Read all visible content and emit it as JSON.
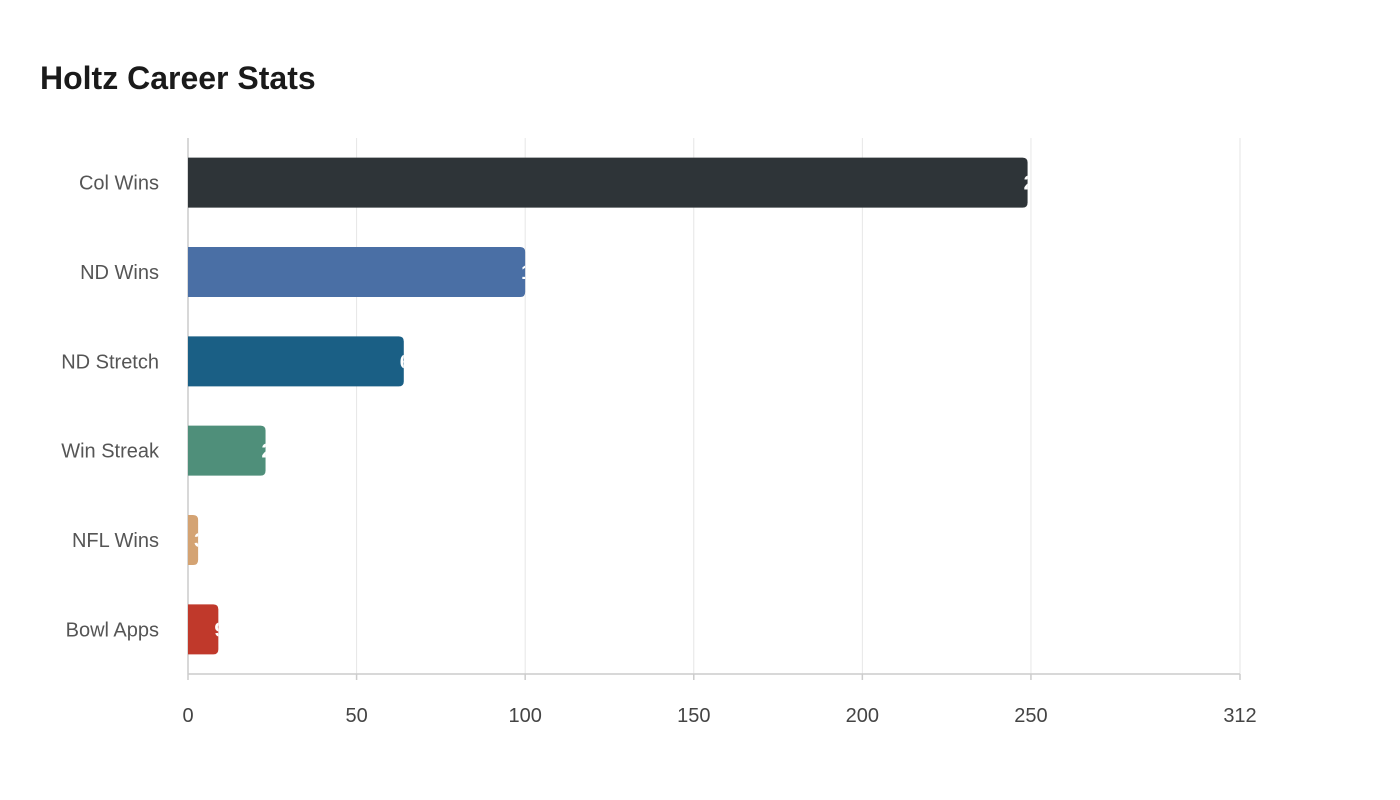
{
  "title": "Holtz Career Stats",
  "chart_data": {
    "type": "bar",
    "orientation": "horizontal",
    "title": "Holtz Career Stats",
    "categories": [
      "Col Wins",
      "ND Wins",
      "ND Stretch",
      "Win Streak",
      "NFL Wins",
      "Bowl Apps"
    ],
    "values": [
      249,
      100,
      64,
      23,
      3,
      9
    ],
    "colors": [
      "#2e3438",
      "#4a6fa5",
      "#1a5f85",
      "#4f8f7a",
      "#d4a373",
      "#c0392b"
    ],
    "xlim": [
      0,
      312
    ],
    "xticks": [
      0,
      50,
      100,
      150,
      200,
      250,
      312
    ],
    "grid": true,
    "legend": "none",
    "data_labels": "inside-end"
  }
}
